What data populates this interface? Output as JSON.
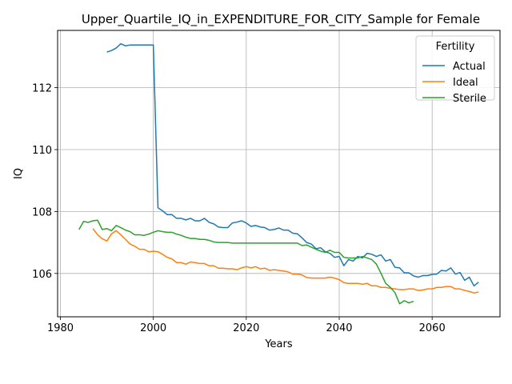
{
  "chart_data": {
    "type": "line",
    "title": "Upper_Quartile_IQ_in_EXPENDITURE_FOR_CITY_Sample for Female",
    "xlabel": "Years",
    "ylabel": "IQ",
    "xlim": [
      1979.4,
      2074.6
    ],
    "ylim": [
      104.6,
      113.85
    ],
    "xticks": [
      1980,
      2000,
      2020,
      2040,
      2060
    ],
    "yticks": [
      106,
      108,
      110,
      112
    ],
    "grid": true,
    "legend": {
      "title": "Fertility",
      "position": "top-right"
    },
    "series": [
      {
        "name": "Actual",
        "color": "#1f77b4",
        "x": [
          1990,
          1991,
          1992,
          1993,
          1994,
          1995,
          1996,
          1997,
          1998,
          1999,
          2000,
          2001,
          2002,
          2003,
          2004,
          2005,
          2006,
          2007,
          2008,
          2009,
          2010,
          2011,
          2012,
          2013,
          2014,
          2015,
          2016,
          2017,
          2018,
          2019,
          2020,
          2021,
          2022,
          2023,
          2024,
          2025,
          2026,
          2027,
          2028,
          2029,
          2030,
          2031,
          2032,
          2033,
          2034,
          2035,
          2036,
          2037,
          2038,
          2039,
          2040,
          2041,
          2042,
          2043,
          2044,
          2045,
          2046,
          2047,
          2048,
          2049,
          2050,
          2051,
          2052,
          2053,
          2054,
          2055,
          2056,
          2057,
          2058,
          2059,
          2060,
          2061,
          2062,
          2063,
          2064,
          2065,
          2066,
          2067,
          2068,
          2069,
          2070
        ],
        "values": [
          113.15,
          113.2,
          113.28,
          113.42,
          113.35,
          113.38,
          113.38,
          113.38,
          113.38,
          113.38,
          113.38,
          108.12,
          108.02,
          107.9,
          107.9,
          107.78,
          107.78,
          107.73,
          107.78,
          107.7,
          107.7,
          107.78,
          107.65,
          107.6,
          107.5,
          107.48,
          107.48,
          107.63,
          107.66,
          107.7,
          107.63,
          107.52,
          107.55,
          107.5,
          107.48,
          107.4,
          107.42,
          107.47,
          107.4,
          107.4,
          107.3,
          107.28,
          107.15,
          107.0,
          106.95,
          106.8,
          106.83,
          106.7,
          106.65,
          106.52,
          106.55,
          106.25,
          106.45,
          106.4,
          106.55,
          106.5,
          106.65,
          106.62,
          106.55,
          106.6,
          106.4,
          106.45,
          106.2,
          106.18,
          106.02,
          106.02,
          105.92,
          105.88,
          105.93,
          105.93,
          105.97,
          105.98,
          106.1,
          106.08,
          106.18,
          105.98,
          106.03,
          105.78,
          105.88,
          105.6,
          105.72
        ]
      },
      {
        "name": "Ideal",
        "color": "#ff7f0e",
        "x": [
          1987,
          1988,
          1989,
          1990,
          1991,
          1992,
          1993,
          1994,
          1995,
          1996,
          1997,
          1998,
          1999,
          2000,
          2001,
          2002,
          2003,
          2004,
          2005,
          2006,
          2007,
          2008,
          2009,
          2010,
          2011,
          2012,
          2013,
          2014,
          2015,
          2016,
          2017,
          2018,
          2019,
          2020,
          2021,
          2022,
          2023,
          2024,
          2025,
          2026,
          2027,
          2028,
          2029,
          2030,
          2031,
          2032,
          2033,
          2034,
          2035,
          2036,
          2037,
          2038,
          2039,
          2040,
          2041,
          2042,
          2043,
          2044,
          2045,
          2046,
          2047,
          2048,
          2049,
          2050,
          2051,
          2052,
          2053,
          2054,
          2055,
          2056,
          2057,
          2058,
          2059,
          2060,
          2061,
          2062,
          2063,
          2064,
          2065,
          2066,
          2067,
          2068,
          2069,
          2070
        ],
        "values": [
          107.45,
          107.25,
          107.12,
          107.05,
          107.28,
          107.38,
          107.25,
          107.1,
          106.95,
          106.88,
          106.78,
          106.78,
          106.7,
          106.72,
          106.7,
          106.62,
          106.52,
          106.47,
          106.35,
          106.35,
          106.3,
          106.37,
          106.35,
          106.32,
          106.32,
          106.25,
          106.25,
          106.17,
          106.17,
          106.15,
          106.15,
          106.12,
          106.18,
          106.22,
          106.18,
          106.22,
          106.15,
          106.17,
          106.1,
          106.12,
          106.1,
          106.08,
          106.05,
          105.98,
          105.98,
          105.95,
          105.87,
          105.85,
          105.85,
          105.85,
          105.85,
          105.88,
          105.85,
          105.8,
          105.7,
          105.68,
          105.68,
          105.68,
          105.65,
          105.68,
          105.6,
          105.6,
          105.55,
          105.55,
          105.52,
          105.5,
          105.48,
          105.48,
          105.5,
          105.5,
          105.45,
          105.47,
          105.5,
          105.5,
          105.55,
          105.55,
          105.58,
          105.58,
          105.5,
          105.5,
          105.45,
          105.42,
          105.37,
          105.4
        ]
      },
      {
        "name": "Sterile",
        "color": "#2ca02c",
        "x": [
          1984,
          1985,
          1986,
          1987,
          1988,
          1989,
          1990,
          1991,
          1992,
          1993,
          1994,
          1995,
          1996,
          1997,
          1998,
          1999,
          2000,
          2001,
          2002,
          2003,
          2004,
          2005,
          2006,
          2007,
          2008,
          2009,
          2010,
          2011,
          2012,
          2013,
          2014,
          2015,
          2016,
          2017,
          2018,
          2019,
          2020,
          2021,
          2022,
          2023,
          2024,
          2025,
          2026,
          2027,
          2028,
          2029,
          2030,
          2031,
          2032,
          2033,
          2034,
          2035,
          2036,
          2037,
          2038,
          2039,
          2040,
          2041,
          2042,
          2043,
          2044,
          2045,
          2046,
          2047,
          2048,
          2049,
          2050,
          2051,
          2052,
          2053,
          2054,
          2055,
          2056
        ],
        "values": [
          107.42,
          107.68,
          107.65,
          107.7,
          107.72,
          107.42,
          107.45,
          107.38,
          107.55,
          107.48,
          107.4,
          107.35,
          107.25,
          107.25,
          107.23,
          107.27,
          107.33,
          107.38,
          107.35,
          107.33,
          107.33,
          107.27,
          107.23,
          107.17,
          107.13,
          107.13,
          107.1,
          107.1,
          107.07,
          107.02,
          107.0,
          107.0,
          107.0,
          106.98,
          106.98,
          106.98,
          106.98,
          106.98,
          106.98,
          106.98,
          106.98,
          106.98,
          106.98,
          106.98,
          106.98,
          106.98,
          106.98,
          106.98,
          106.9,
          106.92,
          106.85,
          106.78,
          106.72,
          106.68,
          106.75,
          106.68,
          106.68,
          106.52,
          106.5,
          106.5,
          106.5,
          106.55,
          106.5,
          106.45,
          106.3,
          106.0,
          105.68,
          105.55,
          105.38,
          105.02,
          105.12,
          105.05,
          105.1
        ]
      }
    ]
  }
}
